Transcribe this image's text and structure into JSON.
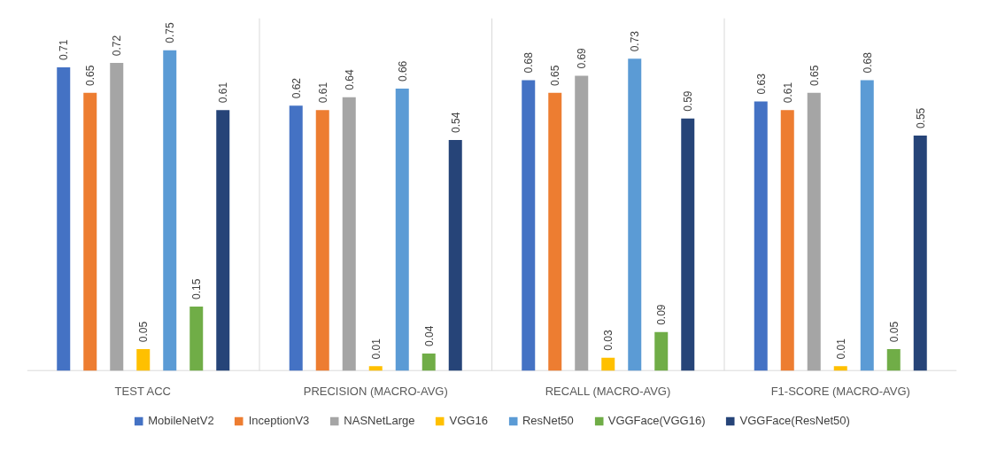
{
  "chart_data": {
    "type": "bar",
    "categories": [
      "TEST ACC",
      "PRECISION (MACRO-AVG)",
      "RECALL (MACRO-AVG)",
      "F1-SCORE (MACRO-AVG)"
    ],
    "series": [
      {
        "name": "MobileNetV2",
        "color": "#4472c4",
        "values": [
          0.71,
          0.62,
          0.68,
          0.63
        ]
      },
      {
        "name": "InceptionV3",
        "color": "#ed7d31",
        "values": [
          0.65,
          0.61,
          0.65,
          0.61
        ]
      },
      {
        "name": "NASNetLarge",
        "color": "#a5a5a5",
        "values": [
          0.72,
          0.64,
          0.69,
          0.65
        ]
      },
      {
        "name": "VGG16",
        "color": "#ffc000",
        "values": [
          0.05,
          0.01,
          0.03,
          0.01
        ]
      },
      {
        "name": "ResNet50",
        "color": "#5b9bd5",
        "values": [
          0.75,
          0.66,
          0.73,
          0.68
        ]
      },
      {
        "name": "VGGFace(VGG16)",
        "color": "#70ad47",
        "values": [
          0.15,
          0.04,
          0.09,
          0.05
        ]
      },
      {
        "name": "VGGFace(ResNet50)",
        "color": "#264478",
        "values": [
          0.61,
          0.54,
          0.59,
          0.55
        ]
      }
    ],
    "data_labels": true,
    "legend": "bottom"
  }
}
